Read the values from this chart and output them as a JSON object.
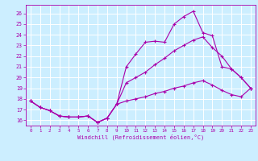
{
  "title": "",
  "xlabel": "Windchill (Refroidissement éolien,°C)",
  "bg_color": "#cceeff",
  "grid_color": "#ffffff",
  "line_color": "#aa00aa",
  "xlim": [
    -0.5,
    23.5
  ],
  "ylim": [
    15.5,
    26.8
  ],
  "xticks": [
    0,
    1,
    2,
    3,
    4,
    5,
    6,
    7,
    8,
    9,
    10,
    11,
    12,
    13,
    14,
    15,
    16,
    17,
    18,
    19,
    20,
    21,
    22,
    23
  ],
  "yticks": [
    16,
    17,
    18,
    19,
    20,
    21,
    22,
    23,
    24,
    25,
    26
  ],
  "line1_x": [
    0,
    1,
    2,
    3,
    4,
    5,
    6,
    7,
    8,
    9,
    10,
    11,
    12,
    13,
    14,
    15,
    16,
    17,
    18,
    19,
    20,
    21,
    22,
    23
  ],
  "line1_y": [
    17.8,
    17.2,
    16.9,
    16.4,
    16.3,
    16.3,
    16.4,
    15.8,
    16.2,
    17.5,
    21.0,
    22.2,
    23.3,
    23.4,
    23.3,
    25.0,
    25.7,
    26.2,
    24.2,
    23.9,
    21.0,
    20.8,
    20.0,
    19.0
  ],
  "line2_x": [
    0,
    1,
    2,
    3,
    4,
    5,
    6,
    7,
    8,
    9,
    10,
    11,
    12,
    13,
    14,
    15,
    16,
    17,
    18,
    19,
    20,
    21,
    22,
    23
  ],
  "line2_y": [
    17.8,
    17.2,
    16.9,
    16.4,
    16.3,
    16.3,
    16.4,
    15.8,
    16.2,
    17.5,
    19.5,
    20.0,
    20.5,
    21.2,
    21.8,
    22.5,
    23.0,
    23.5,
    23.8,
    22.8,
    22.0,
    20.8,
    20.0,
    19.0
  ],
  "line3_x": [
    0,
    1,
    2,
    3,
    4,
    5,
    6,
    7,
    8,
    9,
    10,
    11,
    12,
    13,
    14,
    15,
    16,
    17,
    18,
    19,
    20,
    21,
    22,
    23
  ],
  "line3_y": [
    17.8,
    17.2,
    16.9,
    16.4,
    16.3,
    16.3,
    16.4,
    15.8,
    16.2,
    17.5,
    17.8,
    18.0,
    18.2,
    18.5,
    18.7,
    19.0,
    19.2,
    19.5,
    19.7,
    19.3,
    18.8,
    18.4,
    18.2,
    19.0
  ]
}
